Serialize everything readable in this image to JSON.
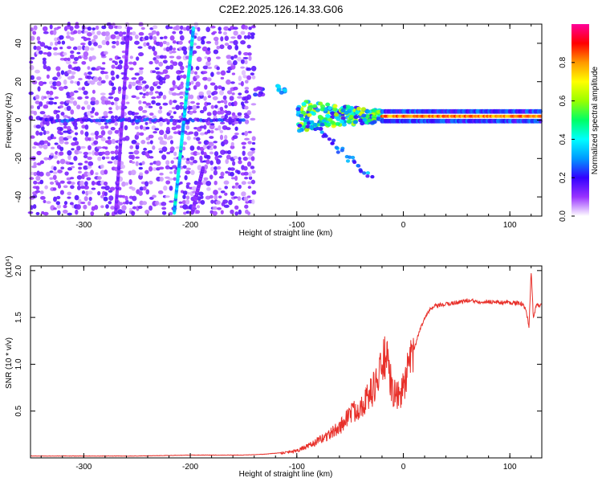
{
  "page_title": "C2E2.2025.126.14.33.G06",
  "chart_data": [
    {
      "type": "heatmap",
      "xlabel": "Height of straight line (km)",
      "ylabel": "Frequency (Hz)",
      "xlim": [
        -350,
        130
      ],
      "ylim": [
        -50,
        50
      ],
      "xticks": [
        -300,
        -200,
        -100,
        0,
        100
      ],
      "yticks": [
        -40,
        -20,
        0,
        20,
        40
      ],
      "colorbar": {
        "label": "Normalized spectral amplitude",
        "range": [
          0,
          1
        ],
        "ticks": [
          0.0,
          0.2,
          0.4,
          0.6,
          0.8
        ],
        "colormap": [
          "#ffffff",
          "#9933ff",
          "#3300ff",
          "#0099ff",
          "#00ffff",
          "#00ff66",
          "#99ff00",
          "#ffff00",
          "#ff9900",
          "#ff0000",
          "#ff0099"
        ]
      },
      "features": [
        {
          "kind": "noise_field",
          "x": [
            -350,
            -140
          ],
          "amplitude": 0.15
        },
        {
          "kind": "sloped_line",
          "x": [
            -215,
            -197
          ],
          "y": [
            -48,
            48
          ],
          "amplitude": 0.35
        },
        {
          "kind": "sloped_line",
          "x": [
            -270,
            -258
          ],
          "y": [
            -48,
            48
          ],
          "amplitude": 0.12
        },
        {
          "kind": "sloped_line",
          "x": [
            -198,
            -188
          ],
          "y": [
            -48,
            -25
          ],
          "amplitude": 0.12
        },
        {
          "kind": "horizontal_line",
          "x": [
            -340,
            -150
          ],
          "y": 0,
          "amplitude": 0.2
        },
        {
          "kind": "spot",
          "x": -115,
          "y": 16,
          "amplitude": 0.35
        },
        {
          "kind": "spot",
          "x": -135,
          "y": 15,
          "amplitude": 0.2
        },
        {
          "kind": "dense_cluster",
          "x": [
            -100,
            -20
          ],
          "y": [
            -12,
            12
          ],
          "amplitude": 0.6
        },
        {
          "kind": "tail",
          "x": [
            -90,
            -30
          ],
          "y": [
            0,
            -30
          ],
          "amplitude": 0.3
        },
        {
          "kind": "horizontal_band",
          "x": [
            -20,
            130
          ],
          "y": 2,
          "amplitude": 0.85
        }
      ]
    },
    {
      "type": "line",
      "xlabel": "Height of straight line (km)",
      "ylabel": "SNR (10 * v/v)",
      "y_scale_label": "(x10⁴)",
      "xlim": [
        -350,
        130
      ],
      "ylim": [
        0,
        2.05
      ],
      "xticks": [
        -300,
        -200,
        -100,
        0,
        100
      ],
      "yticks": [
        0.5,
        1.0,
        1.5,
        2.0
      ],
      "color": "#e8302a",
      "series": [
        {
          "x": [
            -350,
            -300,
            -250,
            -200,
            -150,
            -130,
            -120,
            -110,
            -100,
            -90,
            -80,
            -70,
            -60,
            -55,
            -50,
            -45,
            -40,
            -35,
            -30,
            -25,
            -20,
            -18,
            -15,
            -10,
            -5,
            0,
            5,
            10,
            15,
            20,
            25,
            30,
            40,
            50,
            60,
            70,
            80,
            90,
            100,
            110,
            115,
            118,
            120,
            122,
            125,
            130
          ],
          "y": [
            0.02,
            0.02,
            0.02,
            0.03,
            0.03,
            0.04,
            0.05,
            0.06,
            0.08,
            0.12,
            0.18,
            0.25,
            0.32,
            0.4,
            0.48,
            0.5,
            0.56,
            0.62,
            0.7,
            0.82,
            0.95,
            1.1,
            1.0,
            0.7,
            0.65,
            0.75,
            0.95,
            1.15,
            1.35,
            1.5,
            1.58,
            1.62,
            1.64,
            1.66,
            1.68,
            1.67,
            1.67,
            1.66,
            1.66,
            1.65,
            1.6,
            1.4,
            2.0,
            1.5,
            1.63,
            1.63
          ]
        }
      ],
      "noise": {
        "x_start": -115,
        "amplitude_scale": 0.55
      }
    }
  ]
}
